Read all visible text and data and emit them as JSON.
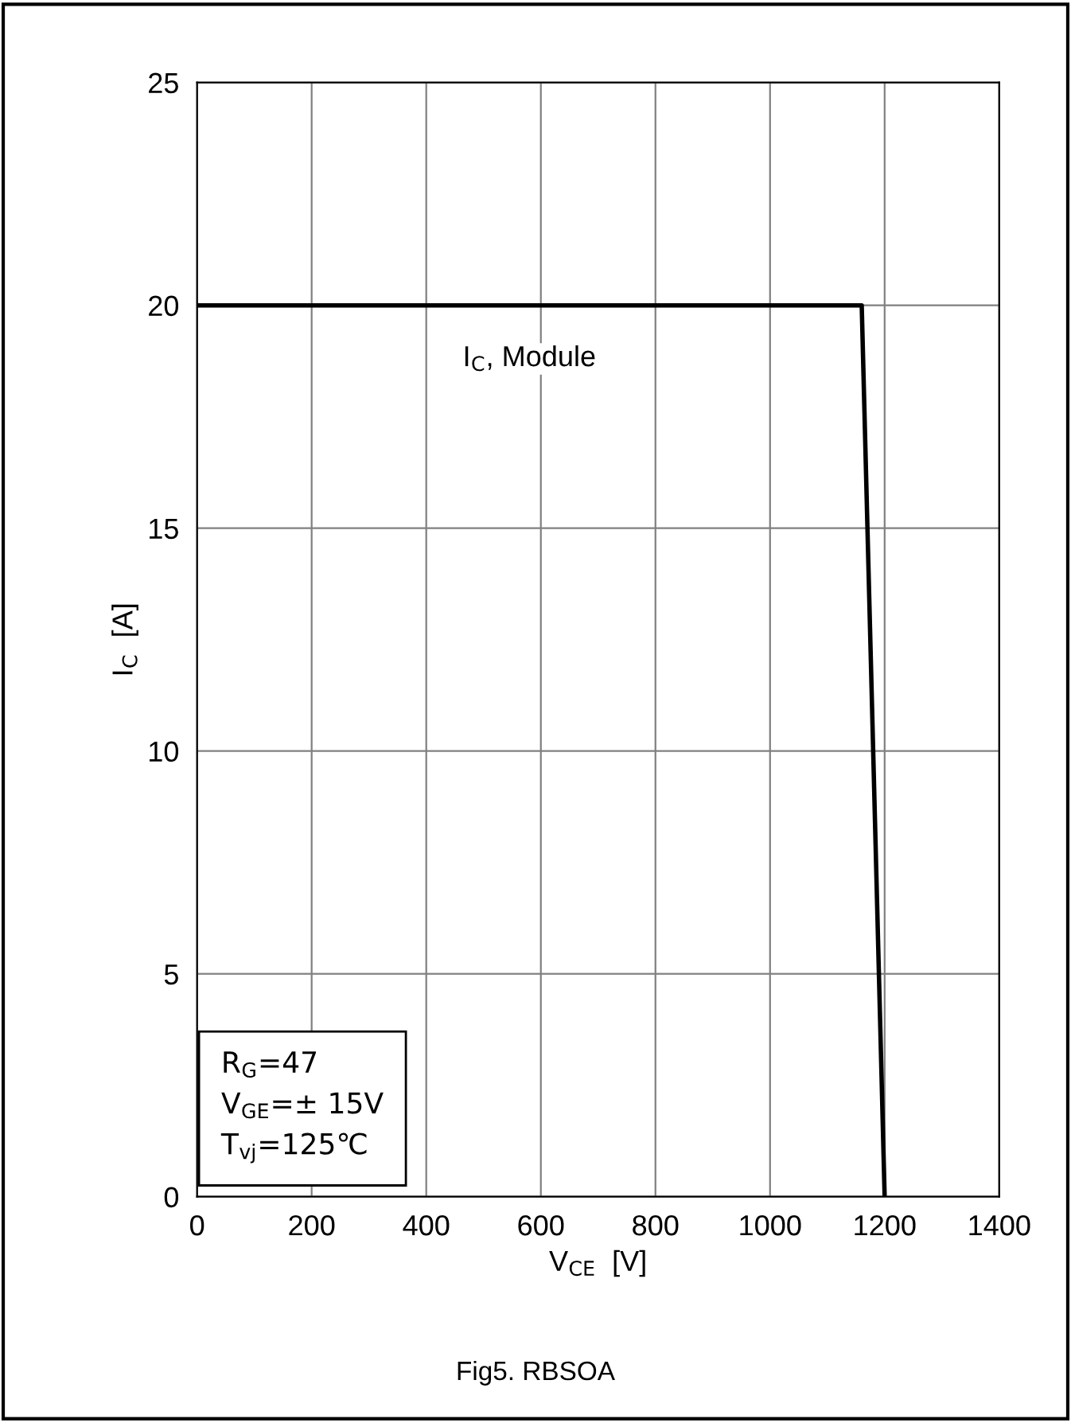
{
  "chart_data": {
    "type": "line",
    "xlabel": "V$_{CE}$  [V]",
    "ylabel": "I$_{C}$  [A]",
    "xlim": [
      0,
      1400
    ],
    "ylim": [
      0,
      25
    ],
    "xticks": [
      0,
      200,
      400,
      600,
      800,
      1000,
      1200,
      1400
    ],
    "yticks": [
      0,
      5,
      10,
      15,
      20,
      25
    ],
    "grid": true,
    "legend": false,
    "marker": "none",
    "line_style": "solid",
    "series": [
      {
        "name": "I$_{C}$, Module",
        "color": "#000000",
        "x": [
          0,
          1160,
          1200
        ],
        "values": [
          20,
          20,
          0
        ]
      }
    ],
    "annotations": [
      "R$_{G}$=47\nV$_{GE}$=± 15V\nT$_{vj}$=125℃",
      "Fig5. RBSOA"
    ]
  }
}
